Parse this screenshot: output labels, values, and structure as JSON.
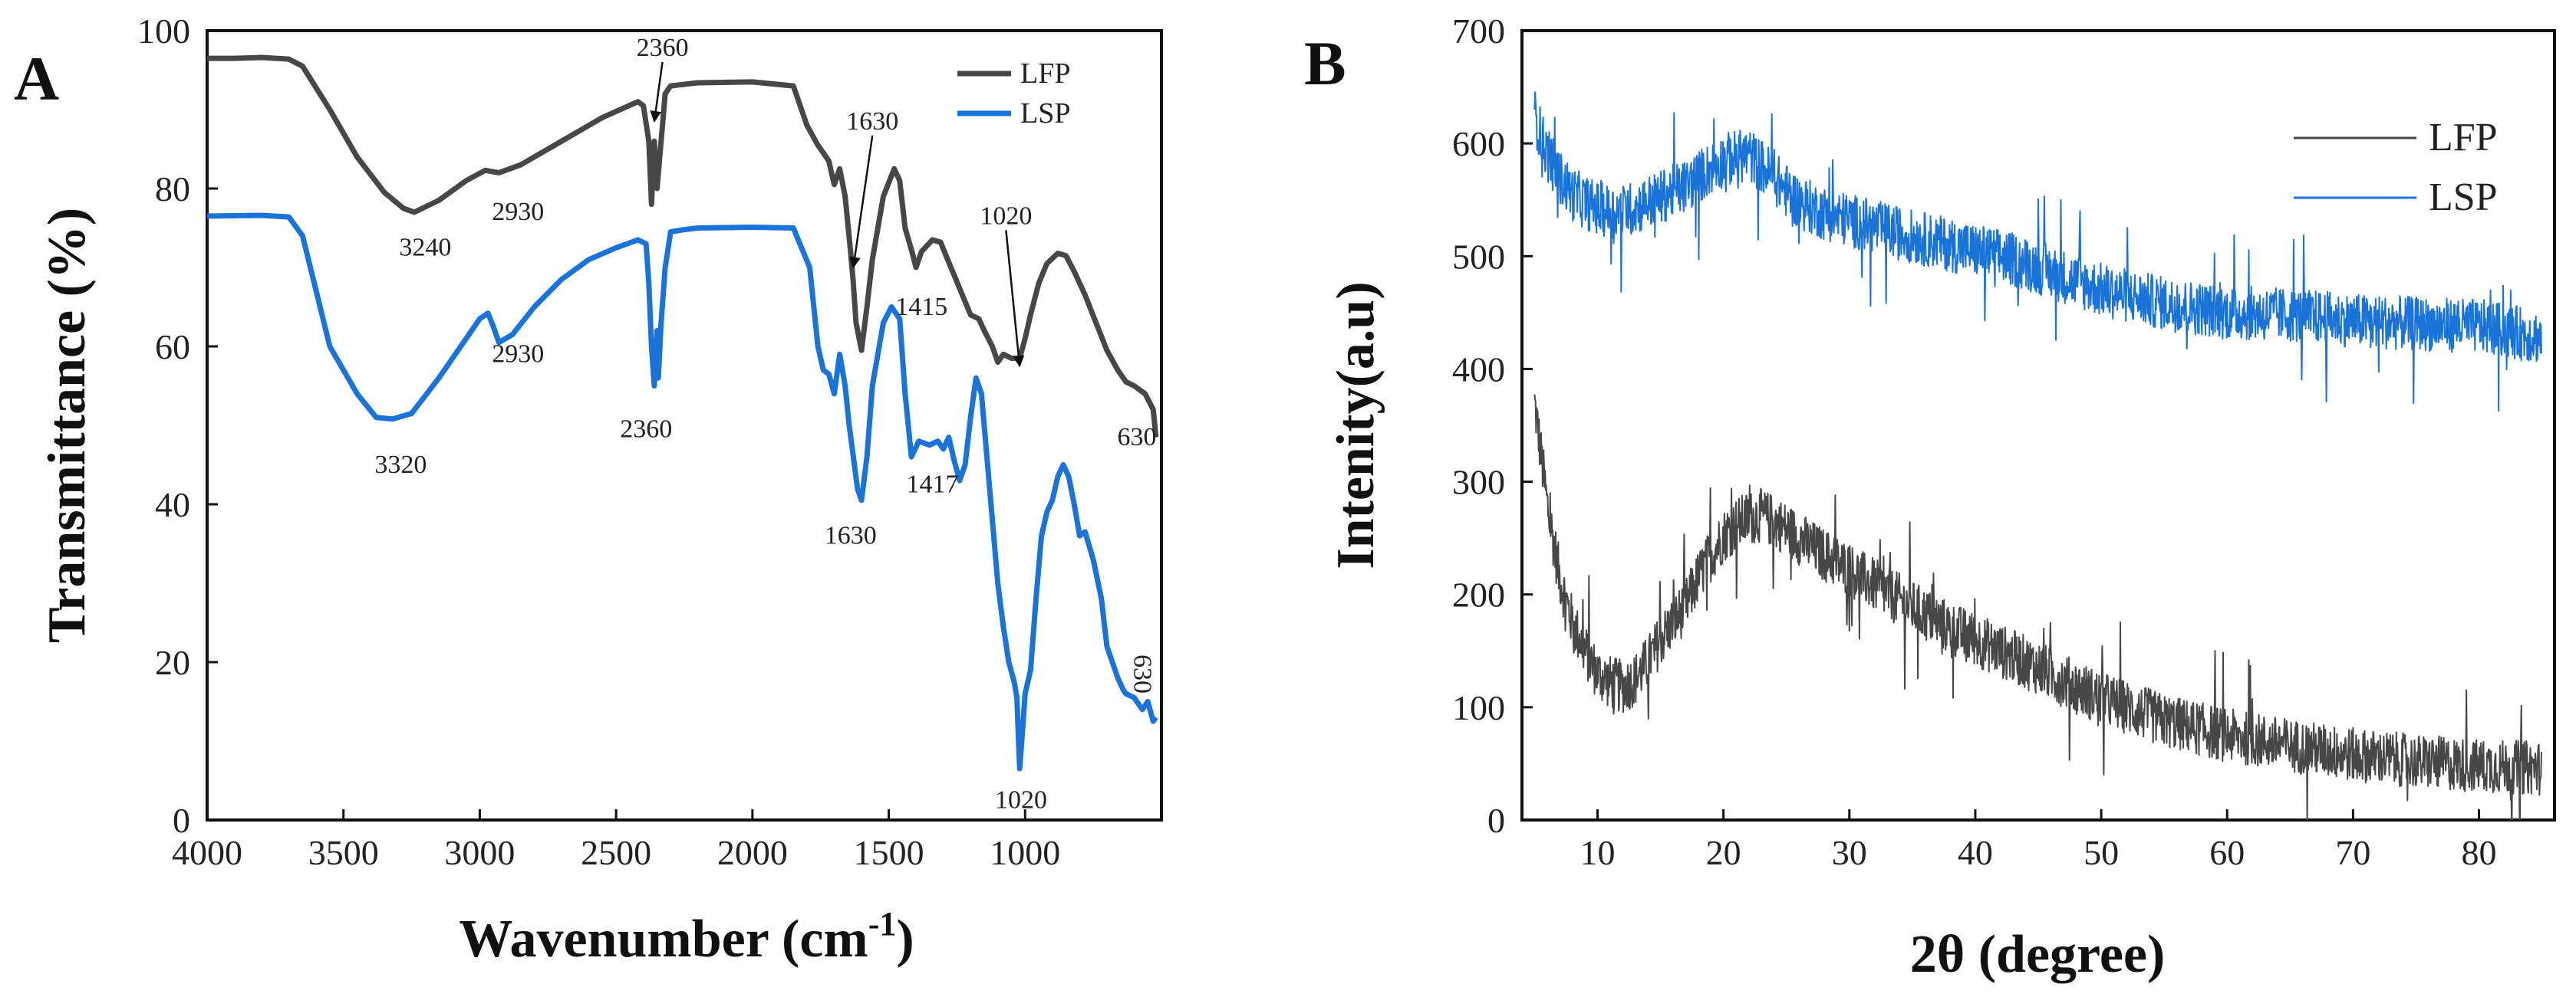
{
  "chart_data": [
    {
      "type": "line",
      "panel_label": "A",
      "xlabel": "Wavenumber (cm",
      "xlabel_sup": "-1",
      "xlabel_end": ")",
      "ylabel": "Transmittance (%)",
      "xlim": [
        4000,
        500
      ],
      "ylim": [
        0,
        100
      ],
      "xticks": [
        4000,
        3500,
        3000,
        2500,
        2000,
        1500,
        1000
      ],
      "yticks": [
        0,
        20,
        40,
        60,
        80,
        100
      ],
      "legend_position": "top-right",
      "series": [
        {
          "name": "LFP",
          "color": "#474747",
          "x": [
            4000,
            3900,
            3800,
            3700,
            3650,
            3550,
            3450,
            3350,
            3280,
            3240,
            3150,
            3050,
            2980,
            2930,
            2850,
            2700,
            2550,
            2420,
            2400,
            2380,
            2370,
            2360,
            2350,
            2340,
            2330,
            2320,
            2300,
            2200,
            2000,
            1850,
            1800,
            1760,
            1740,
            1720,
            1700,
            1680,
            1660,
            1640,
            1630,
            1620,
            1600,
            1580,
            1560,
            1520,
            1480,
            1460,
            1440,
            1415,
            1400,
            1380,
            1340,
            1310,
            1290,
            1260,
            1230,
            1200,
            1170,
            1150,
            1120,
            1100,
            1080,
            1050,
            1020,
            1000,
            980,
            950,
            920,
            880,
            850,
            820,
            780,
            740,
            700,
            660,
            630,
            600,
            560,
            530,
            520
          ],
          "y": [
            96.5,
            96.5,
            96.6,
            96.4,
            95.5,
            90.0,
            84.0,
            79.5,
            77.5,
            77.0,
            78.5,
            81.0,
            82.3,
            82.0,
            83.0,
            86.0,
            89.0,
            91.0,
            90.5,
            86.0,
            78.0,
            86.0,
            80.0,
            84.0,
            88.0,
            92.0,
            93.0,
            93.4,
            93.5,
            93.0,
            88.0,
            85.5,
            84.5,
            83.5,
            80.5,
            82.5,
            79.0,
            72.0,
            68.0,
            63.0,
            59.5,
            65.0,
            71.0,
            79.0,
            82.5,
            81.0,
            75.0,
            72.0,
            70.0,
            72.0,
            73.5,
            73.2,
            71.5,
            69.0,
            66.5,
            64.0,
            63.5,
            62.0,
            60.0,
            58.0,
            59.0,
            58.5,
            58.5,
            61.0,
            64.0,
            68.0,
            70.5,
            71.8,
            71.5,
            69.5,
            66.5,
            63.0,
            59.5,
            57.0,
            55.5,
            55.0,
            54.0,
            52.0,
            48.5
          ]
        },
        {
          "name": "LSP",
          "color": "#1a73d9",
          "x": [
            4000,
            3800,
            3700,
            3650,
            3600,
            3550,
            3450,
            3380,
            3320,
            3250,
            3150,
            3050,
            3000,
            2970,
            2950,
            2930,
            2880,
            2800,
            2700,
            2600,
            2500,
            2420,
            2390,
            2380,
            2370,
            2360,
            2350,
            2345,
            2335,
            2320,
            2300,
            2250,
            2200,
            2000,
            1850,
            1790,
            1760,
            1740,
            1720,
            1700,
            1680,
            1660,
            1645,
            1630,
            1615,
            1600,
            1580,
            1560,
            1520,
            1490,
            1460,
            1440,
            1417,
            1390,
            1350,
            1320,
            1300,
            1280,
            1260,
            1240,
            1220,
            1200,
            1180,
            1160,
            1140,
            1120,
            1100,
            1080,
            1060,
            1040,
            1030,
            1020,
            1010,
            1000,
            980,
            960,
            940,
            920,
            900,
            880,
            860,
            840,
            820,
            800,
            780,
            750,
            720,
            700,
            680,
            660,
            640,
            630,
            600,
            570,
            550,
            530,
            520
          ],
          "y": [
            76.5,
            76.6,
            76.4,
            74.0,
            67.0,
            60.0,
            54.0,
            51.0,
            50.8,
            51.5,
            56.0,
            61.0,
            63.5,
            64.2,
            62.5,
            60.5,
            61.5,
            65.0,
            68.5,
            71.0,
            72.5,
            73.5,
            73.0,
            68.0,
            60.0,
            55.0,
            62.0,
            56.0,
            63.0,
            70.0,
            74.5,
            74.8,
            75.0,
            75.1,
            75.0,
            70.0,
            60.0,
            57.0,
            56.5,
            54.0,
            59.0,
            55.0,
            50.0,
            46.0,
            42.0,
            40.5,
            46.0,
            55.0,
            63.0,
            65.0,
            63.5,
            54.0,
            46.0,
            48.0,
            47.5,
            48.0,
            47.0,
            48.5,
            45.5,
            43.0,
            45.0,
            51.0,
            56.0,
            54.0,
            46.0,
            38.0,
            30.0,
            24.5,
            20.0,
            17.5,
            15.5,
            6.5,
            11.0,
            16.0,
            19.0,
            28.0,
            36.0,
            39.0,
            40.5,
            43.5,
            45.0,
            43.5,
            40.0,
            36.0,
            36.5,
            33.0,
            28.0,
            22.0,
            20.0,
            18.0,
            16.5,
            16.0,
            15.5,
            14.0,
            15.0,
            12.5,
            13.0
          ]
        }
      ],
      "annotations": [
        {
          "text": "2360",
          "x": 2330,
          "y": 96.8,
          "arrow_to": [
            2360,
            88.5
          ]
        },
        {
          "text": "1630",
          "x": 1560,
          "y": 87.5,
          "arrow_to": [
            1630,
            70.0
          ]
        },
        {
          "text": "1020",
          "x": 1070,
          "y": 75.5,
          "arrow_to": [
            1020,
            57.5
          ]
        },
        {
          "text": "3240",
          "x": 3200,
          "y": 71.5
        },
        {
          "text": "2930",
          "x": 2860,
          "y": 76.0
        },
        {
          "text": "1415",
          "x": 1380,
          "y": 64.0
        },
        {
          "text": "630",
          "x": 590,
          "y": 47.5
        },
        {
          "text": "2930",
          "x": 2860,
          "y": 58.0
        },
        {
          "text": "2360",
          "x": 2390,
          "y": 48.5
        },
        {
          "text": "3320",
          "x": 3290,
          "y": 44.0
        },
        {
          "text": "1417",
          "x": 1340,
          "y": 41.5
        },
        {
          "text": "1630",
          "x": 1640,
          "y": 35.0
        },
        {
          "text": "1020",
          "x": 1015,
          "y": 1.5
        },
        {
          "text": "630",
          "x": 600,
          "y": 18.5,
          "rotate": 90
        }
      ]
    },
    {
      "type": "line",
      "panel_label": "B",
      "xlabel": "2θ (degree)",
      "ylabel": "Intenity(a.u)",
      "xlim": [
        4,
        86
      ],
      "ylim": [
        0,
        700
      ],
      "xticks": [
        10,
        20,
        30,
        40,
        50,
        60,
        70,
        80
      ],
      "yticks": [
        0,
        100,
        200,
        300,
        400,
        500,
        600,
        700
      ],
      "legend_position": "top-right",
      "series": [
        {
          "name": "LFP",
          "color": "#474747",
          "x": [
            5,
            6,
            7,
            8,
            9,
            10,
            11,
            12,
            13,
            14,
            15,
            16,
            17,
            18,
            19,
            20,
            21,
            22,
            23,
            24,
            25,
            26,
            27,
            28,
            30,
            32,
            34,
            36,
            38,
            40,
            42,
            45,
            48,
            50,
            55,
            60,
            65,
            70,
            75,
            80,
            85
          ],
          "y": [
            370,
            280,
            215,
            175,
            150,
            130,
            122,
            118,
            125,
            140,
            160,
            175,
            190,
            215,
            235,
            252,
            262,
            268,
            270,
            265,
            258,
            250,
            242,
            235,
            222,
            208,
            195,
            182,
            170,
            160,
            150,
            135,
            118,
            108,
            88,
            75,
            66,
            58,
            52,
            48,
            46
          ]
        },
        {
          "name": "LSP",
          "color": "#1a73d9",
          "x": [
            5,
            6,
            7,
            8,
            9,
            10,
            11,
            12,
            13,
            14,
            15,
            16,
            17,
            18,
            19,
            20,
            21,
            22,
            23,
            24,
            25,
            26,
            28,
            30,
            32,
            34,
            36,
            38,
            40,
            42,
            45,
            48,
            50,
            55,
            60,
            65,
            70,
            75,
            80,
            85
          ],
          "y": [
            625,
            590,
            570,
            555,
            548,
            542,
            540,
            540,
            543,
            548,
            552,
            558,
            562,
            570,
            578,
            585,
            588,
            590,
            580,
            570,
            558,
            548,
            538,
            532,
            526,
            520,
            515,
            510,
            505,
            500,
            490,
            478,
            470,
            458,
            450,
            448,
            443,
            440,
            438,
            428
          ]
        }
      ]
    }
  ]
}
